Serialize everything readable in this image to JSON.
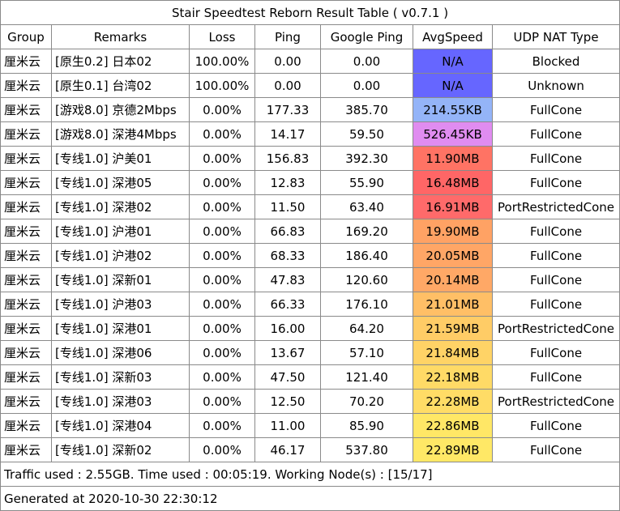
{
  "title": "Stair Speedtest Reborn Result Table ( v0.7.1 )",
  "columns": [
    "Group",
    "Remarks",
    "Loss",
    "Ping",
    "Google Ping",
    "AvgSpeed",
    "UDP NAT Type"
  ],
  "rows": [
    {
      "group": "厘米云",
      "remarks": "[原生0.2] 日本02",
      "loss": "100.00%",
      "ping": "0.00",
      "google_ping": "0.00",
      "avg_speed": "N/A",
      "nat": "Blocked",
      "speed_color": "#6666ff"
    },
    {
      "group": "厘米云",
      "remarks": "[原生0.1] 台湾02",
      "loss": "100.00%",
      "ping": "0.00",
      "google_ping": "0.00",
      "avg_speed": "N/A",
      "nat": "Unknown",
      "speed_color": "#6666ff"
    },
    {
      "group": "厘米云",
      "remarks": "[游戏8.0] 京德2Mbps",
      "loss": "0.00%",
      "ping": "177.33",
      "google_ping": "385.70",
      "avg_speed": "214.55KB",
      "nat": "FullCone",
      "speed_color": "#94b4f8"
    },
    {
      "group": "厘米云",
      "remarks": "[游戏8.0] 深港4Mbps",
      "loss": "0.00%",
      "ping": "14.17",
      "google_ping": "59.50",
      "avg_speed": "526.45KB",
      "nat": "FullCone",
      "speed_color": "#e08cf0"
    },
    {
      "group": "厘米云",
      "remarks": "[专线1.0] 沪美01",
      "loss": "0.00%",
      "ping": "156.83",
      "google_ping": "392.30",
      "avg_speed": "11.90MB",
      "nat": "FullCone",
      "speed_color": "#ff7364"
    },
    {
      "group": "厘米云",
      "remarks": "[专线1.0] 深港05",
      "loss": "0.00%",
      "ping": "12.83",
      "google_ping": "55.90",
      "avg_speed": "16.48MB",
      "nat": "FullCone",
      "speed_color": "#ff6666"
    },
    {
      "group": "厘米云",
      "remarks": "[专线1.0] 深港02",
      "loss": "0.00%",
      "ping": "11.50",
      "google_ping": "63.40",
      "avg_speed": "16.91MB",
      "nat": "PortRestrictedCone",
      "speed_color": "#ff6a6a"
    },
    {
      "group": "厘米云",
      "remarks": "[专线1.0] 沪港01",
      "loss": "0.00%",
      "ping": "66.83",
      "google_ping": "169.20",
      "avg_speed": "19.90MB",
      "nat": "FullCone",
      "speed_color": "#ffa264"
    },
    {
      "group": "厘米云",
      "remarks": "[专线1.0] 沪港02",
      "loss": "0.00%",
      "ping": "68.33",
      "google_ping": "186.40",
      "avg_speed": "20.05MB",
      "nat": "FullCone",
      "speed_color": "#ffa666"
    },
    {
      "group": "厘米云",
      "remarks": "[专线1.0] 深新01",
      "loss": "0.00%",
      "ping": "47.83",
      "google_ping": "120.60",
      "avg_speed": "20.14MB",
      "nat": "FullCone",
      "speed_color": "#ffa866"
    },
    {
      "group": "厘米云",
      "remarks": "[专线1.0] 沪港03",
      "loss": "0.00%",
      "ping": "66.33",
      "google_ping": "176.10",
      "avg_speed": "21.01MB",
      "nat": "FullCone",
      "speed_color": "#ffbf66"
    },
    {
      "group": "厘米云",
      "remarks": "[专线1.0] 深港01",
      "loss": "0.00%",
      "ping": "16.00",
      "google_ping": "64.20",
      "avg_speed": "21.59MB",
      "nat": "PortRestrictedCone",
      "speed_color": "#ffcc66"
    },
    {
      "group": "厘米云",
      "remarks": "[专线1.0] 深港06",
      "loss": "0.00%",
      "ping": "13.67",
      "google_ping": "57.10",
      "avg_speed": "21.84MB",
      "nat": "FullCone",
      "speed_color": "#ffd366"
    },
    {
      "group": "厘米云",
      "remarks": "[专线1.0] 深新03",
      "loss": "0.00%",
      "ping": "47.50",
      "google_ping": "121.40",
      "avg_speed": "22.18MB",
      "nat": "FullCone",
      "speed_color": "#ffda66"
    },
    {
      "group": "厘米云",
      "remarks": "[专线1.0] 深港03",
      "loss": "0.00%",
      "ping": "12.50",
      "google_ping": "70.20",
      "avg_speed": "22.28MB",
      "nat": "PortRestrictedCone",
      "speed_color": "#ffdc66"
    },
    {
      "group": "厘米云",
      "remarks": "[专线1.0] 深港04",
      "loss": "0.00%",
      "ping": "11.00",
      "google_ping": "85.90",
      "avg_speed": "22.86MB",
      "nat": "FullCone",
      "speed_color": "#ffe766"
    },
    {
      "group": "厘米云",
      "remarks": "[专线1.0] 深新02",
      "loss": "0.00%",
      "ping": "46.17",
      "google_ping": "537.80",
      "avg_speed": "22.89MB",
      "nat": "FullCone",
      "speed_color": "#ffe866"
    }
  ],
  "footer": {
    "traffic": "Traffic used : 2.55GB. Time used : 00:05:19. Working Node(s) : [15/17]",
    "generated": "Generated at 2020-10-30 22:30:12"
  }
}
